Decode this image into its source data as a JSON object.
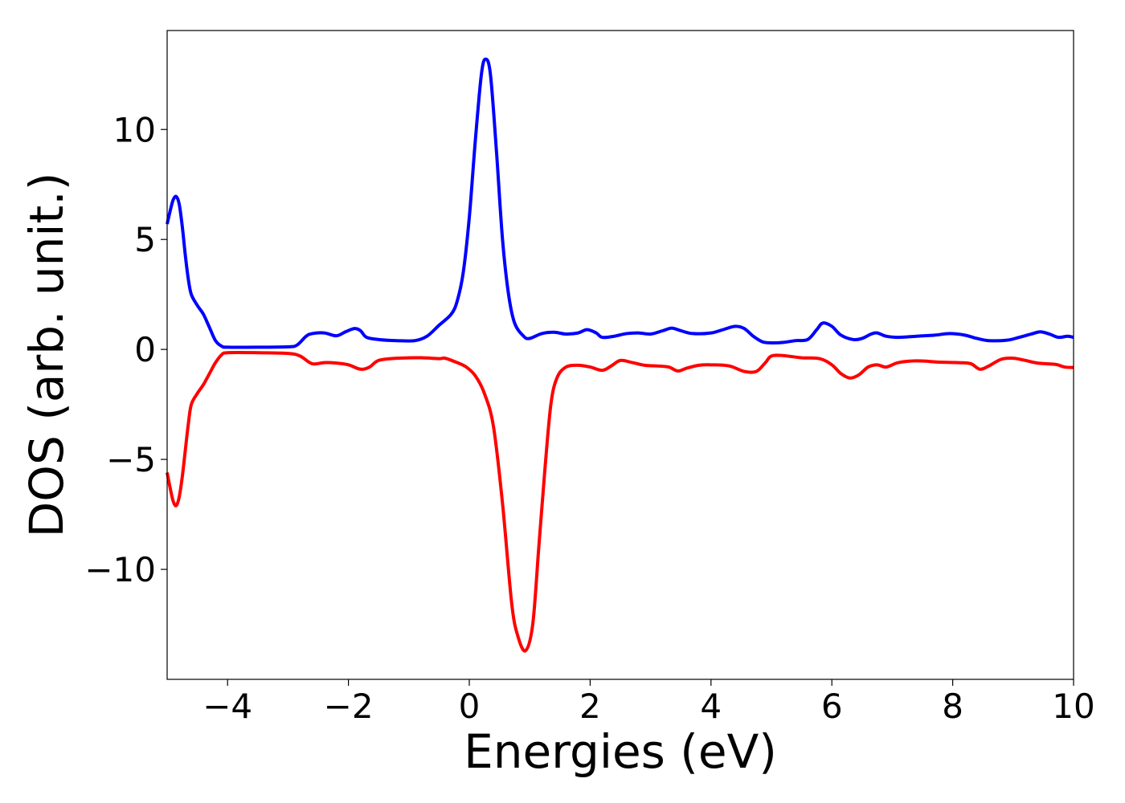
{
  "chart_data": {
    "type": "line",
    "title": "",
    "xlabel": "Energies (eV)",
    "ylabel": "DOS (arb. unit.)",
    "xlim": [
      -5,
      10
    ],
    "ylim": [
      -15,
      14.5
    ],
    "grid": false,
    "legend": "none",
    "xticks": [
      {
        "value": -4,
        "label": "−4"
      },
      {
        "value": -2,
        "label": "−2"
      },
      {
        "value": 0,
        "label": "0"
      },
      {
        "value": 2,
        "label": "2"
      },
      {
        "value": 4,
        "label": "4"
      },
      {
        "value": 6,
        "label": "6"
      },
      {
        "value": 8,
        "label": "8"
      },
      {
        "value": 10,
        "label": "10"
      }
    ],
    "yticks": [
      {
        "value": -10,
        "label": "−10"
      },
      {
        "value": -5,
        "label": "−5"
      },
      {
        "value": 0,
        "label": "0"
      },
      {
        "value": 5,
        "label": "5"
      },
      {
        "value": 10,
        "label": "10"
      }
    ],
    "series": [
      {
        "color": "#0000ff",
        "points": [
          [
            -5.0,
            5.7
          ],
          [
            -4.95,
            6.3
          ],
          [
            -4.9,
            6.8
          ],
          [
            -4.85,
            6.95
          ],
          [
            -4.8,
            6.6
          ],
          [
            -4.75,
            5.6
          ],
          [
            -4.7,
            4.3
          ],
          [
            -4.65,
            3.2
          ],
          [
            -4.6,
            2.5
          ],
          [
            -4.5,
            2.0
          ],
          [
            -4.4,
            1.6
          ],
          [
            -4.3,
            1.0
          ],
          [
            -4.2,
            0.4
          ],
          [
            -4.1,
            0.15
          ],
          [
            -4.0,
            0.1
          ],
          [
            -3.5,
            0.1
          ],
          [
            -3.0,
            0.12
          ],
          [
            -2.85,
            0.2
          ],
          [
            -2.7,
            0.6
          ],
          [
            -2.6,
            0.72
          ],
          [
            -2.4,
            0.75
          ],
          [
            -2.2,
            0.62
          ],
          [
            -2.05,
            0.8
          ],
          [
            -1.9,
            0.95
          ],
          [
            -1.8,
            0.85
          ],
          [
            -1.7,
            0.55
          ],
          [
            -1.5,
            0.45
          ],
          [
            -1.2,
            0.4
          ],
          [
            -0.9,
            0.4
          ],
          [
            -0.7,
            0.6
          ],
          [
            -0.5,
            1.1
          ],
          [
            -0.3,
            1.6
          ],
          [
            -0.2,
            2.2
          ],
          [
            -0.1,
            3.5
          ],
          [
            0.0,
            6.0
          ],
          [
            0.1,
            9.5
          ],
          [
            0.2,
            12.5
          ],
          [
            0.27,
            13.2
          ],
          [
            0.35,
            12.5
          ],
          [
            0.45,
            9.0
          ],
          [
            0.55,
            5.0
          ],
          [
            0.65,
            2.5
          ],
          [
            0.75,
            1.2
          ],
          [
            0.9,
            0.6
          ],
          [
            1.0,
            0.5
          ],
          [
            1.2,
            0.72
          ],
          [
            1.4,
            0.78
          ],
          [
            1.6,
            0.7
          ],
          [
            1.8,
            0.75
          ],
          [
            1.95,
            0.9
          ],
          [
            2.1,
            0.75
          ],
          [
            2.2,
            0.55
          ],
          [
            2.4,
            0.6
          ],
          [
            2.6,
            0.72
          ],
          [
            2.8,
            0.75
          ],
          [
            3.0,
            0.7
          ],
          [
            3.2,
            0.85
          ],
          [
            3.35,
            0.97
          ],
          [
            3.5,
            0.85
          ],
          [
            3.7,
            0.72
          ],
          [
            4.0,
            0.75
          ],
          [
            4.2,
            0.9
          ],
          [
            4.4,
            1.05
          ],
          [
            4.55,
            0.95
          ],
          [
            4.7,
            0.6
          ],
          [
            4.85,
            0.35
          ],
          [
            5.0,
            0.3
          ],
          [
            5.2,
            0.32
          ],
          [
            5.4,
            0.4
          ],
          [
            5.6,
            0.45
          ],
          [
            5.75,
            0.9
          ],
          [
            5.85,
            1.2
          ],
          [
            6.0,
            1.05
          ],
          [
            6.15,
            0.65
          ],
          [
            6.35,
            0.45
          ],
          [
            6.5,
            0.5
          ],
          [
            6.65,
            0.7
          ],
          [
            6.75,
            0.75
          ],
          [
            6.9,
            0.6
          ],
          [
            7.1,
            0.55
          ],
          [
            7.4,
            0.6
          ],
          [
            7.7,
            0.65
          ],
          [
            7.95,
            0.72
          ],
          [
            8.2,
            0.65
          ],
          [
            8.4,
            0.5
          ],
          [
            8.6,
            0.4
          ],
          [
            8.9,
            0.42
          ],
          [
            9.1,
            0.55
          ],
          [
            9.3,
            0.7
          ],
          [
            9.45,
            0.8
          ],
          [
            9.6,
            0.7
          ],
          [
            9.75,
            0.55
          ],
          [
            9.9,
            0.6
          ],
          [
            10.0,
            0.55
          ]
        ]
      },
      {
        "color": "#ff0000",
        "points": [
          [
            -5.0,
            -5.6
          ],
          [
            -4.95,
            -6.3
          ],
          [
            -4.9,
            -6.9
          ],
          [
            -4.85,
            -7.1
          ],
          [
            -4.8,
            -6.7
          ],
          [
            -4.75,
            -5.8
          ],
          [
            -4.7,
            -4.6
          ],
          [
            -4.65,
            -3.4
          ],
          [
            -4.6,
            -2.5
          ],
          [
            -4.5,
            -2.0
          ],
          [
            -4.4,
            -1.6
          ],
          [
            -4.3,
            -1.1
          ],
          [
            -4.2,
            -0.6
          ],
          [
            -4.1,
            -0.25
          ],
          [
            -4.0,
            -0.15
          ],
          [
            -3.5,
            -0.15
          ],
          [
            -3.0,
            -0.18
          ],
          [
            -2.8,
            -0.3
          ],
          [
            -2.6,
            -0.65
          ],
          [
            -2.4,
            -0.6
          ],
          [
            -2.2,
            -0.62
          ],
          [
            -2.0,
            -0.7
          ],
          [
            -1.8,
            -0.9
          ],
          [
            -1.65,
            -0.8
          ],
          [
            -1.5,
            -0.5
          ],
          [
            -1.2,
            -0.4
          ],
          [
            -0.8,
            -0.38
          ],
          [
            -0.5,
            -0.42
          ],
          [
            -0.4,
            -0.4
          ],
          [
            -0.2,
            -0.6
          ],
          [
            -0.05,
            -0.8
          ],
          [
            0.1,
            -1.2
          ],
          [
            0.25,
            -2.0
          ],
          [
            0.4,
            -3.5
          ],
          [
            0.55,
            -7.0
          ],
          [
            0.7,
            -11.5
          ],
          [
            0.8,
            -13.0
          ],
          [
            0.93,
            -13.7
          ],
          [
            1.05,
            -12.5
          ],
          [
            1.15,
            -9.0
          ],
          [
            1.25,
            -5.5
          ],
          [
            1.35,
            -2.5
          ],
          [
            1.45,
            -1.3
          ],
          [
            1.6,
            -0.8
          ],
          [
            1.8,
            -0.72
          ],
          [
            2.0,
            -0.8
          ],
          [
            2.2,
            -0.95
          ],
          [
            2.35,
            -0.75
          ],
          [
            2.5,
            -0.5
          ],
          [
            2.7,
            -0.6
          ],
          [
            2.9,
            -0.72
          ],
          [
            3.1,
            -0.75
          ],
          [
            3.3,
            -0.8
          ],
          [
            3.45,
            -0.98
          ],
          [
            3.6,
            -0.85
          ],
          [
            3.8,
            -0.72
          ],
          [
            4.0,
            -0.7
          ],
          [
            4.3,
            -0.75
          ],
          [
            4.55,
            -1.0
          ],
          [
            4.75,
            -1.0
          ],
          [
            4.9,
            -0.6
          ],
          [
            5.0,
            -0.3
          ],
          [
            5.2,
            -0.28
          ],
          [
            5.5,
            -0.38
          ],
          [
            5.8,
            -0.42
          ],
          [
            6.0,
            -0.7
          ],
          [
            6.15,
            -1.1
          ],
          [
            6.3,
            -1.3
          ],
          [
            6.45,
            -1.15
          ],
          [
            6.6,
            -0.8
          ],
          [
            6.75,
            -0.7
          ],
          [
            6.9,
            -0.8
          ],
          [
            7.1,
            -0.6
          ],
          [
            7.4,
            -0.52
          ],
          [
            7.8,
            -0.58
          ],
          [
            8.1,
            -0.6
          ],
          [
            8.3,
            -0.65
          ],
          [
            8.45,
            -0.9
          ],
          [
            8.6,
            -0.75
          ],
          [
            8.8,
            -0.45
          ],
          [
            9.0,
            -0.4
          ],
          [
            9.2,
            -0.5
          ],
          [
            9.4,
            -0.62
          ],
          [
            9.7,
            -0.68
          ],
          [
            9.85,
            -0.8
          ],
          [
            10.0,
            -0.82
          ]
        ]
      }
    ]
  }
}
